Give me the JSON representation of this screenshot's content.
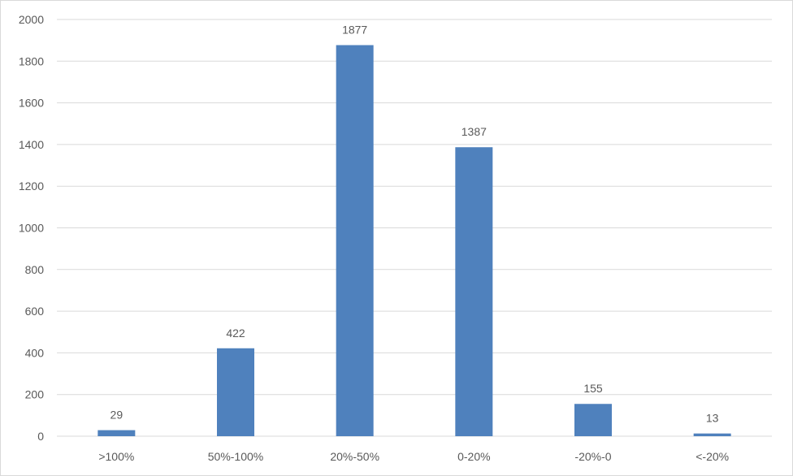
{
  "chart_data": {
    "type": "bar",
    "categories": [
      ">100%",
      "50%-100%",
      "20%-50%",
      "0-20%",
      "-20%-0",
      "<-20%"
    ],
    "values": [
      29,
      422,
      1877,
      1387,
      155,
      13
    ],
    "data_labels": [
      "29",
      "422",
      "1877",
      "1387",
      "155",
      "13"
    ],
    "title": "",
    "xlabel": "",
    "ylabel": "",
    "ylim": [
      0,
      2000
    ],
    "yticks": [
      "0",
      "200",
      "400",
      "600",
      "800",
      "1000",
      "1200",
      "1400",
      "1600",
      "1800",
      "2000"
    ],
    "grid": true,
    "legend": "none",
    "colors": {
      "bar": "#4f81bd",
      "grid": "#d9d9d9",
      "text": "#595959"
    }
  }
}
